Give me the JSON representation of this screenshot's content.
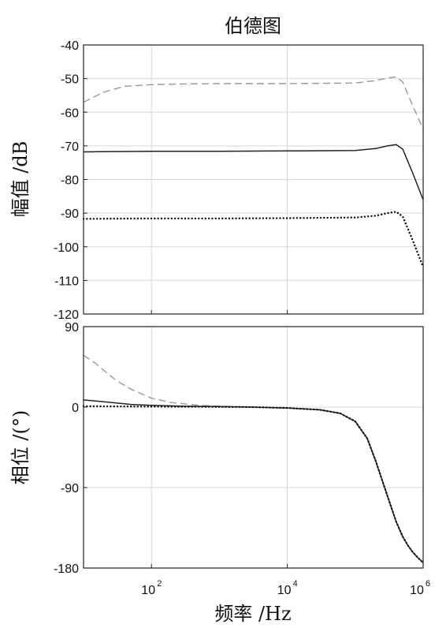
{
  "chart_data": {
    "type": "line",
    "title": "伯德图",
    "xlabel": "频率 /Hz",
    "xscale": "log",
    "xlim": [
      10,
      1000000
    ],
    "xticks": [
      {
        "value": 100,
        "base": "10",
        "exp": "2"
      },
      {
        "value": 10000,
        "base": "10",
        "exp": "4"
      },
      {
        "value": 1000000,
        "base": "10",
        "exp": "6"
      }
    ],
    "grid": true,
    "magnitude": {
      "ylabel": "幅值 /dB",
      "ylim": [
        -120,
        -40
      ],
      "yticks": [
        -40,
        -50,
        -60,
        -70,
        -80,
        -90,
        -100,
        -110,
        -120
      ],
      "series": [
        {
          "style": "dashed",
          "color": "#999999",
          "x": [
            10,
            20,
            40,
            100,
            300,
            1000,
            10000,
            100000,
            200000,
            300000,
            400000,
            500000,
            700000,
            1000000
          ],
          "y": [
            -57,
            -54,
            -52.3,
            -51.8,
            -51.6,
            -51.5,
            -51.5,
            -51.3,
            -50.6,
            -49.8,
            -49.5,
            -51,
            -58,
            -65
          ]
        },
        {
          "style": "solid",
          "color": "#222222",
          "x": [
            10,
            100,
            1000,
            10000,
            100000,
            200000,
            300000,
            400000,
            500000,
            700000,
            1000000
          ],
          "y": [
            -71.8,
            -71.6,
            -71.6,
            -71.5,
            -71.4,
            -70.8,
            -70,
            -69.6,
            -71,
            -78,
            -86
          ]
        },
        {
          "style": "dotted",
          "color": "#111111",
          "x": [
            10,
            100,
            1000,
            10000,
            100000,
            200000,
            300000,
            400000,
            500000,
            700000,
            1000000
          ],
          "y": [
            -91.7,
            -91.6,
            -91.6,
            -91.5,
            -91.3,
            -90.8,
            -90,
            -89.6,
            -91,
            -98,
            -106
          ]
        }
      ]
    },
    "phase": {
      "ylabel": "相位 /(°)",
      "ylim": [
        -180,
        90
      ],
      "yticks": [
        90,
        0,
        -90,
        -180
      ],
      "series": [
        {
          "style": "dashed",
          "color": "#999999",
          "x": [
            10,
            15,
            20,
            30,
            50,
            100,
            200,
            500,
            1000,
            3000,
            10000,
            30000,
            60000,
            100000,
            150000,
            200000,
            300000,
            400000,
            500000,
            600000,
            700000,
            850000,
            1000000
          ],
          "y": [
            58,
            49,
            41,
            30,
            20,
            10,
            5,
            2,
            1,
            0,
            -1,
            -3,
            -7,
            -16,
            -35,
            -60,
            -100,
            -128,
            -145,
            -155,
            -162,
            -169,
            -174
          ]
        },
        {
          "style": "solid",
          "color": "#222222",
          "x": [
            10,
            20,
            50,
            100,
            300,
            1000,
            3000,
            10000,
            30000,
            60000,
            100000,
            150000,
            200000,
            300000,
            400000,
            500000,
            600000,
            700000,
            850000,
            1000000
          ],
          "y": [
            8,
            6,
            3,
            2,
            1,
            0.5,
            0,
            -1,
            -3,
            -7,
            -16,
            -35,
            -60,
            -100,
            -128,
            -145,
            -155,
            -162,
            -169,
            -174
          ]
        },
        {
          "style": "dotted",
          "color": "#111111",
          "x": [
            10,
            100,
            1000,
            3000,
            10000,
            30000,
            60000,
            100000,
            150000,
            200000,
            300000,
            400000,
            500000,
            600000,
            700000,
            850000,
            1000000
          ],
          "y": [
            1,
            0.5,
            0.3,
            0,
            -1,
            -3,
            -7,
            -16,
            -35,
            -60,
            -100,
            -128,
            -145,
            -155,
            -162,
            -169,
            -174
          ]
        }
      ]
    }
  }
}
